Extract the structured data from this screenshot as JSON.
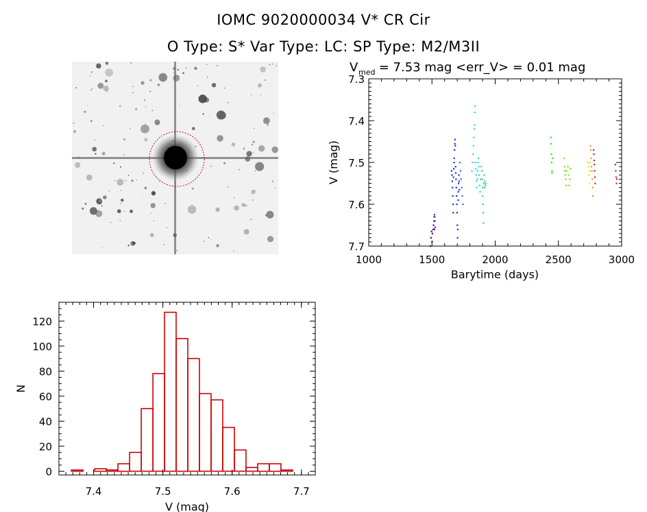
{
  "page_title": "IOMC 9020000034    V* CR Cir",
  "page_subtitle": "O Type: S*  Var Type: LC:  SP Type: M2/M3II",
  "colors": {
    "axis": "#000000",
    "histogram_bar": "#cc0000",
    "aperture_circle": "#dd0000",
    "finder_bg": "#f1f1f1",
    "season_colors": [
      "#4b0082",
      "#1c2fd6",
      "#2fd6e0",
      "#2fd66a",
      "#38d838",
      "#7fe026",
      "#e0e020",
      "#e89a1c",
      "#cc2222"
    ]
  },
  "finder_image": {
    "type": "finder-chart-image",
    "aperture": "circle around target"
  },
  "chart_data": [
    {
      "type": "scatter",
      "title_prefix": "V",
      "title_sub": "med",
      "title_rest": " = 7.53 mag <err_V> = 0.01 mag",
      "xlabel": "Barytime (days)",
      "ylabel": "V (mag)",
      "xlim": [
        1000,
        3000
      ],
      "ylim": [
        7.3,
        7.7
      ],
      "y_inverted": true,
      "xticks": [
        1000,
        1500,
        2000,
        2500,
        3000
      ],
      "xtick_labels": [
        "1000",
        "1500",
        "2000",
        "2500",
        "3000"
      ],
      "yticks": [
        7.3,
        7.4,
        7.5,
        7.6,
        7.7
      ],
      "ytick_labels": [
        "7.3",
        "7.4",
        "7.5",
        "7.6",
        "7.7"
      ],
      "grid": false,
      "series": [
        {
          "color": "#4b0082",
          "points": [
            [
              1488,
              7.7
            ],
            [
              1492,
              7.68
            ],
            [
              1496,
              7.665
            ],
            [
              1500,
              7.69
            ],
            [
              1503,
              7.67
            ],
            [
              1508,
              7.66
            ],
            [
              1512,
              7.65
            ]
          ]
        },
        {
          "color": "#5a1a9a",
          "points": [
            [
              1515,
              7.64
            ],
            [
              1517,
              7.63
            ],
            [
              1519,
              7.625
            ],
            [
              1521,
              7.63
            ],
            [
              1523,
              7.64
            ],
            [
              1525,
              7.655
            ],
            [
              1520,
              7.66
            ]
          ]
        },
        {
          "color": "#1c2fd6",
          "points": [
            [
              1655,
              7.52
            ],
            [
              1658,
              7.53
            ],
            [
              1660,
              7.545
            ],
            [
              1662,
              7.56
            ],
            [
              1664,
              7.58
            ],
            [
              1666,
              7.6
            ],
            [
              1668,
              7.62
            ],
            [
              1670,
              7.535
            ],
            [
              1672,
              7.515
            ],
            [
              1674,
              7.5
            ],
            [
              1676,
              7.49
            ],
            [
              1678,
              7.47
            ],
            [
              1680,
              7.455
            ],
            [
              1682,
              7.445
            ],
            [
              1684,
              7.46
            ],
            [
              1686,
              7.51
            ],
            [
              1688,
              7.525
            ],
            [
              1690,
              7.54
            ],
            [
              1692,
              7.56
            ],
            [
              1694,
              7.58
            ],
            [
              1696,
              7.6
            ],
            [
              1698,
              7.62
            ],
            [
              1700,
              7.65
            ],
            [
              1702,
              7.68
            ],
            [
              1704,
              7.66
            ],
            [
              1706,
              7.59
            ],
            [
              1708,
              7.57
            ],
            [
              1710,
              7.55
            ],
            [
              1712,
              7.53
            ],
            [
              1714,
              7.545
            ],
            [
              1716,
              7.565
            ]
          ]
        },
        {
          "color": "#2a6fe0",
          "points": [
            [
              1720,
              7.5
            ],
            [
              1725,
              7.52
            ],
            [
              1730,
              7.54
            ],
            [
              1735,
              7.56
            ],
            [
              1740,
              7.58
            ],
            [
              1745,
              7.6
            ]
          ]
        },
        {
          "color": "#2fd6e0",
          "points": [
            [
              1815,
              7.52
            ],
            [
              1820,
              7.5
            ],
            [
              1825,
              7.48
            ],
            [
              1828,
              7.46
            ],
            [
              1830,
              7.44
            ],
            [
              1833,
              7.42
            ],
            [
              1836,
              7.41
            ],
            [
              1838,
              7.38
            ],
            [
              1840,
              7.365
            ],
            [
              1843,
              7.5
            ],
            [
              1846,
              7.515
            ],
            [
              1849,
              7.53
            ],
            [
              1852,
              7.545
            ],
            [
              1855,
              7.56
            ],
            [
              1858,
              7.54
            ],
            [
              1861,
              7.52
            ],
            [
              1864,
              7.5
            ],
            [
              1867,
              7.49
            ],
            [
              1870,
              7.51
            ],
            [
              1873,
              7.53
            ],
            [
              1876,
              7.555
            ],
            [
              1880,
              7.57
            ],
            [
              1884,
              7.54
            ],
            [
              1888,
              7.51
            ]
          ]
        },
        {
          "color": "#2fd66a",
          "points": [
            [
              1895,
              7.52
            ],
            [
              1897,
              7.54
            ],
            [
              1899,
              7.56
            ],
            [
              1901,
              7.58
            ],
            [
              1903,
              7.6
            ],
            [
              1905,
              7.62
            ],
            [
              1907,
              7.645
            ],
            [
              1909,
              7.55
            ],
            [
              1912,
              7.53
            ],
            [
              1915,
              7.56
            ],
            [
              1918,
              7.545
            ],
            [
              1921,
              7.555
            ],
            [
              1924,
              7.55
            ]
          ]
        },
        {
          "color": "#38d838",
          "points": [
            [
              2440,
              7.44
            ],
            [
              2442,
              7.455
            ],
            [
              2444,
              7.48
            ],
            [
              2446,
              7.5
            ],
            [
              2448,
              7.52
            ],
            [
              2450,
              7.525
            ],
            [
              2453,
              7.49
            ]
          ]
        },
        {
          "color": "#7fe026",
          "points": [
            [
              2545,
              7.49
            ],
            [
              2548,
              7.51
            ],
            [
              2551,
              7.52
            ],
            [
              2554,
              7.53
            ],
            [
              2557,
              7.54
            ],
            [
              2560,
              7.555
            ],
            [
              2563,
              7.52
            ],
            [
              2575,
              7.51
            ],
            [
              2580,
              7.53
            ],
            [
              2585,
              7.555
            ],
            [
              2590,
              7.54
            ],
            [
              2595,
              7.515
            ]
          ]
        },
        {
          "color": "#e0e020",
          "points": [
            [
              2735,
              7.5
            ],
            [
              2738,
              7.51
            ],
            [
              2741,
              7.53
            ],
            [
              2744,
              7.55
            ],
            [
              2747,
              7.52
            ],
            [
              2750,
              7.5
            ]
          ]
        },
        {
          "color": "#e89a1c",
          "points": [
            [
              2752,
              7.46
            ],
            [
              2755,
              7.47
            ],
            [
              2758,
              7.49
            ],
            [
              2761,
              7.51
            ],
            [
              2764,
              7.52
            ],
            [
              2767,
              7.54
            ],
            [
              2770,
              7.56
            ],
            [
              2773,
              7.58
            ]
          ]
        },
        {
          "color": "#cc2222",
          "points": [
            [
              2778,
              7.47
            ],
            [
              2780,
              7.48
            ],
            [
              2782,
              7.495
            ],
            [
              2784,
              7.505
            ],
            [
              2786,
              7.52
            ],
            [
              2788,
              7.535
            ],
            [
              2790,
              7.55
            ],
            [
              2950,
              7.505
            ],
            [
              2953,
              7.52
            ],
            [
              2956,
              7.535
            ],
            [
              2959,
              7.55
            ],
            [
              2962,
              7.54
            ]
          ]
        }
      ]
    },
    {
      "type": "bar",
      "title": "",
      "xlabel": "V (mag)",
      "ylabel": "N",
      "xlim": [
        7.35,
        7.72
      ],
      "ylim": [
        -3,
        135
      ],
      "xticks": [
        7.4,
        7.5,
        7.6,
        7.7
      ],
      "xtick_labels": [
        "7.4",
        "7.5",
        "7.6",
        "7.7"
      ],
      "yticks": [
        0,
        20,
        40,
        60,
        80,
        100,
        120
      ],
      "ytick_labels": [
        "0",
        "20",
        "40",
        "60",
        "80",
        "100",
        "120"
      ],
      "bin_width": 0.0168,
      "bin_starts": [
        7.368,
        7.3848,
        7.4016,
        7.4184,
        7.4352,
        7.452,
        7.4688,
        7.4856,
        7.5024,
        7.5192,
        7.536,
        7.5528,
        7.5696,
        7.5864,
        7.6032,
        7.62,
        7.6368,
        7.6536,
        7.6704,
        7.6872
      ],
      "values": [
        1,
        0,
        2,
        1,
        6,
        15,
        50,
        78,
        127,
        106,
        90,
        62,
        57,
        35,
        17,
        3,
        6,
        6,
        1,
        0
      ]
    }
  ]
}
